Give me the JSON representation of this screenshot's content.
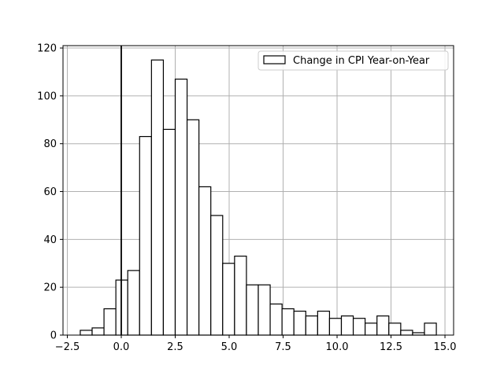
{
  "chart_data": {
    "type": "bar",
    "subtype": "histogram",
    "bin_width": 0.55,
    "bin_start": -1.9,
    "counts": [
      2,
      3,
      11,
      23,
      27,
      83,
      115,
      86,
      107,
      90,
      62,
      50,
      30,
      33,
      21,
      21,
      13,
      11,
      10,
      8,
      10,
      7,
      8,
      7,
      5,
      8,
      5,
      2,
      1,
      5
    ],
    "series": [
      {
        "name": "Change in CPI Year-on-Year"
      }
    ],
    "xlim": [
      -2.7,
      15.4
    ],
    "ylim": [
      0,
      121
    ],
    "x_ticks": [
      -2.5,
      0.0,
      2.5,
      5.0,
      7.5,
      10.0,
      12.5,
      15.0
    ],
    "x_tick_labels": [
      "−2.5",
      "0.0",
      "2.5",
      "5.0",
      "7.5",
      "10.0",
      "12.5",
      "15.0"
    ],
    "y_ticks": [
      0,
      20,
      40,
      60,
      80,
      100,
      120
    ],
    "y_tick_labels": [
      "0",
      "20",
      "40",
      "60",
      "80",
      "100",
      "120"
    ],
    "vertical_line_x": 0,
    "grid": true,
    "legend_position": "upper right",
    "colors": {
      "bar_fill": "#ffffff",
      "bar_edge": "#000000",
      "grid": "#b0b0b0",
      "axis": "#000000",
      "vline": "#000000"
    }
  }
}
